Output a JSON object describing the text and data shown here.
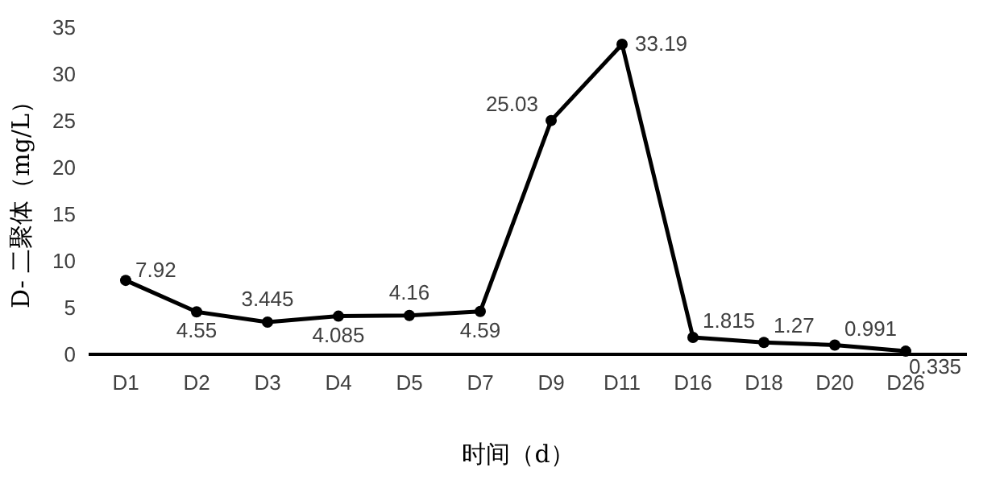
{
  "chart_data": {
    "type": "line",
    "xlabel": "时间（d）",
    "ylabel": "D- 二聚体（mg/L）",
    "categories": [
      "D1",
      "D2",
      "D3",
      "D4",
      "D5",
      "D7",
      "D9",
      "D11",
      "D16",
      "D18",
      "D20",
      "D26"
    ],
    "series": [
      {
        "color": "#000000",
        "values": [
          7.92,
          4.55,
          3.445,
          4.085,
          4.16,
          4.59,
          25.03,
          33.19,
          1.815,
          1.27,
          0.991,
          0.335
        ]
      }
    ],
    "ylim": [
      0,
      35
    ],
    "yticks": [
      0,
      5,
      10,
      15,
      20,
      25,
      30,
      35
    ],
    "grid": false,
    "marker": "circle",
    "line_style": "solid",
    "data_labels": true
  }
}
